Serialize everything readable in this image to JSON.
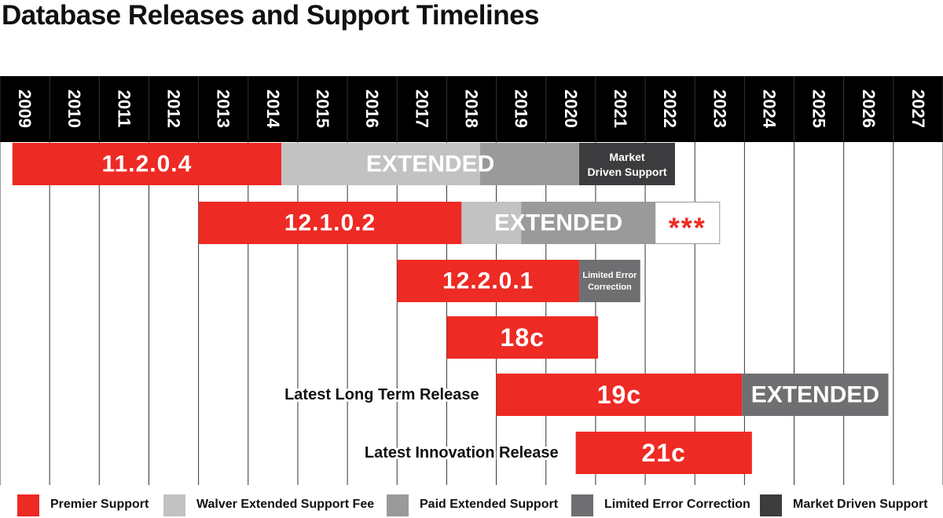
{
  "title": "Database Releases and Support Timelines",
  "colors": {
    "premier": "#ee2a24",
    "waiver": "#c2c2c2",
    "paid": "#9a9a9b",
    "limited": "#6f6f71",
    "market": "#3c3c3e",
    "header_bg": "#000000",
    "grid": "#333333"
  },
  "legend": [
    {
      "key": "premier",
      "label": "Premier Support"
    },
    {
      "key": "waiver",
      "label": "Walver Extended Support Fee"
    },
    {
      "key": "paid",
      "label": "Paid Extended Support"
    },
    {
      "key": "limited",
      "label": "Limited Error Correction"
    },
    {
      "key": "market",
      "label": "Market Driven Support"
    }
  ],
  "chart_data": {
    "type": "gantt",
    "title": "Database Releases and Support Timelines",
    "years": [
      "2009",
      "2010",
      "2011",
      "2012",
      "2013",
      "2014",
      "2015",
      "2016",
      "2017",
      "2018",
      "2019",
      "2020",
      "2021",
      "2022",
      "2023",
      "2024",
      "2025",
      "2026",
      "2027"
    ],
    "xlim": [
      2009,
      2028
    ],
    "releases": [
      {
        "name": "11.2.0.4",
        "side_label": "",
        "segments": [
          {
            "key": "premier",
            "start": 2009.25,
            "end": 2014.67
          },
          {
            "key": "waiver",
            "start": 2014.67,
            "end": 2018.67
          },
          {
            "key": "paid",
            "start": 2018.67,
            "end": 2020.67
          },
          {
            "key": "market",
            "start": 2020.67,
            "end": 2022.6
          }
        ],
        "overlay_text": "EXTENDED",
        "overlay_start": 2014.67,
        "overlay_end": 2020.67,
        "market_text_1": "Market",
        "market_text_2": "Driven Support"
      },
      {
        "name": "12.1.0.2",
        "side_label": "",
        "segments": [
          {
            "key": "premier",
            "start": 2013.0,
            "end": 2018.3
          },
          {
            "key": "waiver",
            "start": 2018.3,
            "end": 2019.5
          },
          {
            "key": "paid",
            "start": 2019.5,
            "end": 2022.2
          }
        ],
        "overlay_text": "EXTENDED",
        "overlay_start": 2018.3,
        "overlay_end": 2022.2,
        "note": "***",
        "note_start": 2022.2,
        "note_end": 2023.5
      },
      {
        "name": "12.2.0.1",
        "side_label": "",
        "segments": [
          {
            "key": "premier",
            "start": 2017.0,
            "end": 2020.67
          },
          {
            "key": "limited",
            "start": 2020.67,
            "end": 2021.9
          }
        ],
        "limited_text_1": "Limited Error",
        "limited_text_2": "Correction"
      },
      {
        "name": "18c",
        "side_label": "",
        "segments": [
          {
            "key": "premier",
            "start": 2018.0,
            "end": 2021.05
          }
        ]
      },
      {
        "name": "19c",
        "side_label": "Latest Long Term Release",
        "segments": [
          {
            "key": "premier",
            "start": 2019.0,
            "end": 2023.95
          },
          {
            "key": "limited",
            "start": 2023.95,
            "end": 2026.9
          }
        ],
        "overlay_text": "EXTENDED",
        "overlay_start": 2023.95,
        "overlay_end": 2026.9
      },
      {
        "name": "21c",
        "side_label": "Latest Innovation Release",
        "segments": [
          {
            "key": "premier",
            "start": 2020.6,
            "end": 2024.15
          }
        ]
      }
    ]
  }
}
